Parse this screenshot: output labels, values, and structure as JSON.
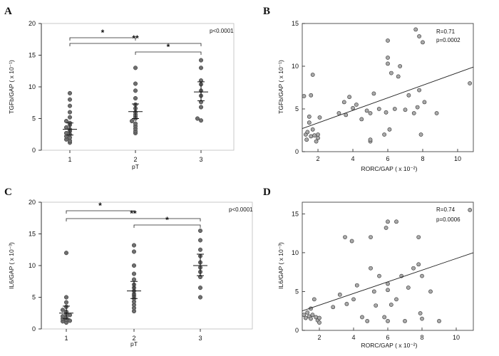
{
  "panel_labels": [
    "A",
    "B",
    "C",
    "D"
  ],
  "chart_data": [
    {
      "panel": "A",
      "type": "scatter",
      "xlabel": "pT",
      "ylabel": "TGFb/GAP ( x 10⁻¹)",
      "categories": [
        "1",
        "2",
        "3"
      ],
      "ylim": [
        0,
        20
      ],
      "yticks": [
        "0",
        "5",
        "10",
        "15",
        "20"
      ],
      "annotation": "p<0.0001",
      "significance": [
        {
          "from": "1",
          "to": "2",
          "label": "*"
        },
        {
          "from": "2",
          "to": "3",
          "label": "*"
        },
        {
          "from": "1",
          "to": "3",
          "label": "**"
        }
      ],
      "groups": [
        {
          "category": "1",
          "mean": 3.3,
          "sem_low": 2.4,
          "sem_high": 4.3,
          "values": [
            9.0,
            8.0,
            7.0,
            6.0,
            5.2,
            4.6,
            4.3,
            4.0,
            3.6,
            3.3,
            3.0,
            2.7,
            2.5,
            2.2,
            2.0,
            1.7,
            1.5,
            1.2
          ]
        },
        {
          "category": "2",
          "mean": 6.1,
          "sem_low": 5.0,
          "sem_high": 7.3,
          "values": [
            13.0,
            10.5,
            9.4,
            8.2,
            7.2,
            6.6,
            6.0,
            5.6,
            5.3,
            5.0,
            4.6,
            4.2,
            3.8,
            3.4,
            3.0,
            2.7
          ]
        },
        {
          "category": "3",
          "mean": 9.2,
          "sem_low": 7.8,
          "sem_high": 10.8,
          "values": [
            14.2,
            13.0,
            11.0,
            10.4,
            9.4,
            8.6,
            7.6,
            6.8,
            5.0,
            4.7
          ]
        }
      ]
    },
    {
      "panel": "B",
      "type": "scatter",
      "xlabel": "RORC/GAP ( x 10⁻²)",
      "ylabel": "TGFb/GAP ( x 10⁻¹)",
      "xlim": [
        1.1,
        10.9
      ],
      "ylim": [
        0,
        15
      ],
      "xticks": [
        "2",
        "4",
        "6",
        "8",
        "10"
      ],
      "yticks": [
        "0",
        "5",
        "10",
        "15"
      ],
      "stats": [
        "R=0.71",
        "p=0.0002"
      ],
      "regression": {
        "x0": 1.1,
        "y0": 2.7,
        "x1": 10.9,
        "y1": 9.9
      },
      "points": [
        [
          1.2,
          6.5
        ],
        [
          1.3,
          2.0
        ],
        [
          1.35,
          1.4
        ],
        [
          1.4,
          2.3
        ],
        [
          1.5,
          3.4
        ],
        [
          1.5,
          4.1
        ],
        [
          1.6,
          6.6
        ],
        [
          1.6,
          1.8
        ],
        [
          1.7,
          9.0
        ],
        [
          1.7,
          2.6
        ],
        [
          1.8,
          1.9
        ],
        [
          1.9,
          1.2
        ],
        [
          2.0,
          2.0
        ],
        [
          2.0,
          1.6
        ],
        [
          2.1,
          4.0
        ],
        [
          3.2,
          4.5
        ],
        [
          3.5,
          5.8
        ],
        [
          3.6,
          4.3
        ],
        [
          3.8,
          6.4
        ],
        [
          4.0,
          5.1
        ],
        [
          4.2,
          5.5
        ],
        [
          4.5,
          3.8
        ],
        [
          4.8,
          4.8
        ],
        [
          5.0,
          1.2
        ],
        [
          5.0,
          1.4
        ],
        [
          5.0,
          4.5
        ],
        [
          5.2,
          6.8
        ],
        [
          5.5,
          5.0
        ],
        [
          5.8,
          2.0
        ],
        [
          5.9,
          4.6
        ],
        [
          6.0,
          11.0
        ],
        [
          6.0,
          13.0
        ],
        [
          6.0,
          10.3
        ],
        [
          6.1,
          2.6
        ],
        [
          6.2,
          9.2
        ],
        [
          6.4,
          5.0
        ],
        [
          6.6,
          8.8
        ],
        [
          6.7,
          10.0
        ],
        [
          7.0,
          4.9
        ],
        [
          7.2,
          6.6
        ],
        [
          7.5,
          4.5
        ],
        [
          7.6,
          14.3
        ],
        [
          7.7,
          5.2
        ],
        [
          7.8,
          7.2
        ],
        [
          7.8,
          13.5
        ],
        [
          8.0,
          12.8
        ],
        [
          8.1,
          5.8
        ],
        [
          8.8,
          4.5
        ],
        [
          10.7,
          8.0
        ],
        [
          7.9,
          2.0
        ]
      ]
    },
    {
      "panel": "C",
      "type": "scatter",
      "xlabel": "pT",
      "ylabel": "IL6/GAP ( x 10⁻³)",
      "categories": [
        "1",
        "2",
        "3"
      ],
      "ylim": [
        0,
        20
      ],
      "yticks": [
        "0",
        "5",
        "10",
        "15",
        "20"
      ],
      "annotation": "p<0.0001",
      "significance": [
        {
          "from": "1",
          "to": "2",
          "label": "*"
        },
        {
          "from": "2",
          "to": "3",
          "label": "*"
        },
        {
          "from": "1",
          "to": "3",
          "label": "**"
        }
      ],
      "groups": [
        {
          "category": "1",
          "mean": 2.5,
          "sem_low": 1.6,
          "sem_high": 3.6,
          "values": [
            12.0,
            5.0,
            4.2,
            3.5,
            3.0,
            2.7,
            2.4,
            2.2,
            2.0,
            1.8,
            1.6,
            1.5,
            1.3,
            1.2,
            1.0
          ]
        },
        {
          "category": "2",
          "mean": 6.0,
          "sem_low": 4.8,
          "sem_high": 7.5,
          "values": [
            13.2,
            12.2,
            10.0,
            8.7,
            7.8,
            7.0,
            6.5,
            6.0,
            5.5,
            5.2,
            4.8,
            4.3,
            3.8,
            3.3,
            2.8
          ]
        },
        {
          "category": "3",
          "mean": 10.0,
          "sem_low": 8.4,
          "sem_high": 11.8,
          "values": [
            15.5,
            14.0,
            12.5,
            11.5,
            10.5,
            9.7,
            9.0,
            8.2,
            6.5,
            5.0
          ]
        }
      ]
    },
    {
      "panel": "D",
      "type": "scatter",
      "xlabel": "RORC/GAP ( x 10⁻²)",
      "ylabel": "IL6/GAP ( x 10⁻³)",
      "xlim": [
        1.0,
        11.0
      ],
      "ylim": [
        0,
        16.5
      ],
      "xticks": [
        "2",
        "4",
        "6",
        "8",
        "10"
      ],
      "yticks": [
        "0",
        "5",
        "10",
        "15"
      ],
      "stats": [
        "R=0.74",
        "p=0.0006"
      ],
      "regression": {
        "x0": 1.0,
        "y0": 2.5,
        "x1": 11.0,
        "y1": 10.0
      },
      "points": [
        [
          1.1,
          2.0
        ],
        [
          1.2,
          1.6
        ],
        [
          1.3,
          2.3
        ],
        [
          1.4,
          1.8
        ],
        [
          1.5,
          2.8
        ],
        [
          1.5,
          1.5
        ],
        [
          1.6,
          2.0
        ],
        [
          1.7,
          4.0
        ],
        [
          1.8,
          1.7
        ],
        [
          1.9,
          1.3
        ],
        [
          2.0,
          1.6
        ],
        [
          2.0,
          1.0
        ],
        [
          2.8,
          3.0
        ],
        [
          3.2,
          4.6
        ],
        [
          3.5,
          12.0
        ],
        [
          3.6,
          3.4
        ],
        [
          3.9,
          11.5
        ],
        [
          4.0,
          4.0
        ],
        [
          4.2,
          5.8
        ],
        [
          4.5,
          1.7
        ],
        [
          4.8,
          1.2
        ],
        [
          5.0,
          12.0
        ],
        [
          5.0,
          8.0
        ],
        [
          5.2,
          5.0
        ],
        [
          5.3,
          3.2
        ],
        [
          5.5,
          7.0
        ],
        [
          5.8,
          1.7
        ],
        [
          5.9,
          13.2
        ],
        [
          6.0,
          14.0
        ],
        [
          6.0,
          1.2
        ],
        [
          6.0,
          5.2
        ],
        [
          6.0,
          6.0
        ],
        [
          6.2,
          3.3
        ],
        [
          6.5,
          14.0
        ],
        [
          6.5,
          4.0
        ],
        [
          6.8,
          7.0
        ],
        [
          7.0,
          1.2
        ],
        [
          7.2,
          5.5
        ],
        [
          7.5,
          8.0
        ],
        [
          7.8,
          8.5
        ],
        [
          7.8,
          12.0
        ],
        [
          7.9,
          2.2
        ],
        [
          8.0,
          1.5
        ],
        [
          8.0,
          7.0
        ],
        [
          8.5,
          5.0
        ],
        [
          9.0,
          1.2
        ],
        [
          10.8,
          15.5
        ]
      ]
    }
  ]
}
